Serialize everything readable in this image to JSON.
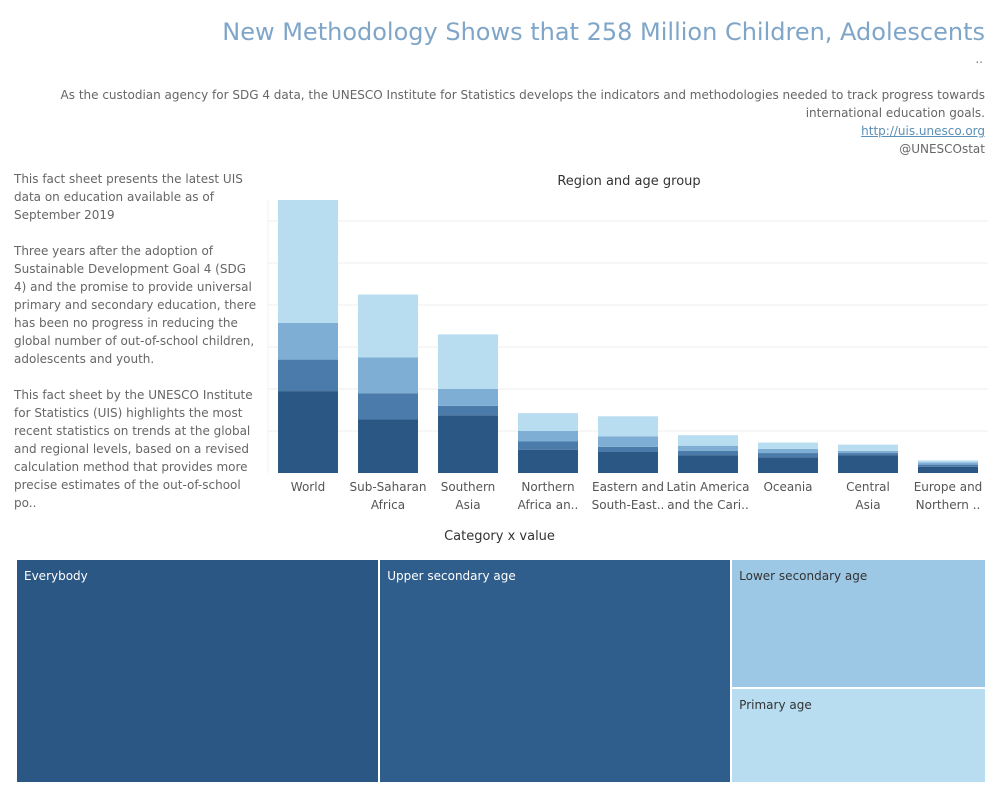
{
  "header": {
    "title": "New Methodology Shows that 258 Million Children, Adolescents",
    "ellipsis": "..",
    "description": "As the custodian agency for SDG 4 data, the UNESCO Institute for Statistics develops the indicators and methodologies needed to track progress towards international education goals.",
    "link": "http://uis.unesco.org",
    "handle": "@UNESCOstat"
  },
  "sidebar": {
    "paragraphs": [
      "This fact sheet presents the latest UIS data on education available as of September 2019",
      "Three years after the adoption of Sustainable Development Goal 4 (SDG 4) and the promise to provide universal primary and secondary education, there has been no progress in reducing the global number of out-of-school children, adolescents and youth.",
      "This fact sheet by the UNESCO Institute for Statistics (UIS) highlights the most recent statistics on trends at the global and regional levels, based on a revised calculation method that provides more precise estimates of the out-of-school po.."
    ]
  },
  "chart_data": [
    {
      "type": "bar",
      "stacked": true,
      "title": "Region and age group",
      "categories": [
        "World",
        "Sub-Saharan Africa",
        "Southern Asia",
        "Northern Africa an..",
        "Eastern and South-East..",
        "Latin America and the Cari..",
        "Oceania",
        "Central Asia",
        "Europe and Northern .."
      ],
      "ylim": [
        0,
        260
      ],
      "grid": true,
      "series": [
        {
          "color": "#2a5783",
          "values": [
            78,
            51,
            55,
            22,
            20,
            17,
            15,
            17,
            6
          ]
        },
        {
          "color": "#4b7baa",
          "values": [
            30,
            25,
            9,
            8,
            5,
            4,
            4,
            2,
            2
          ]
        },
        {
          "color": "#7eaed3",
          "values": [
            35,
            34,
            16,
            10,
            10,
            5,
            4,
            2,
            2
          ]
        },
        {
          "color": "#b8dcf0",
          "values": [
            117,
            60,
            52,
            17,
            19,
            10,
            6,
            6,
            2
          ]
        }
      ]
    },
    {
      "type": "treemap",
      "title": "Category x value",
      "items": [
        {
          "label": "Everybody",
          "value": 258,
          "color": "#2a5783",
          "text_color": "#ffffff"
        },
        {
          "label": "Upper secondary age",
          "value": 250,
          "color": "#2f5e8c",
          "text_color": "#ffffff"
        },
        {
          "label": "Lower secondary age",
          "value": 104,
          "color": "#9cc7e5",
          "text_color": "#333333"
        },
        {
          "label": "Primary age",
          "value": 77,
          "color": "#b8dcf0",
          "text_color": "#333333"
        }
      ]
    }
  ]
}
